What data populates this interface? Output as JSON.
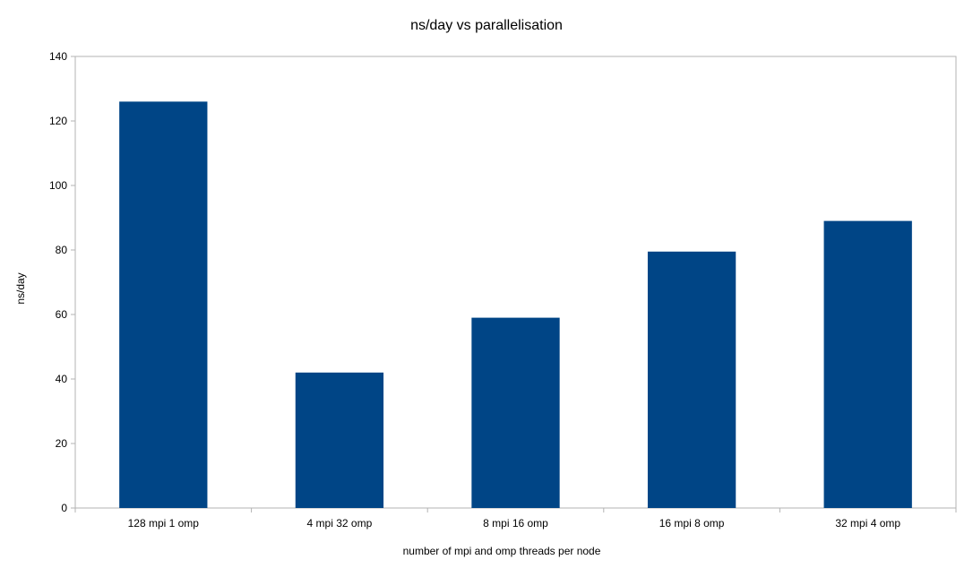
{
  "chart_data": {
    "type": "bar",
    "title": "ns/day vs parallelisation",
    "xlabel": "number of mpi and omp threads per node",
    "ylabel": "ns/day",
    "categories": [
      "128 mpi 1 omp",
      "4 mpi 32 omp",
      "8 mpi 16 omp",
      "16 mpi 8 omp",
      "32 mpi 4 omp"
    ],
    "series": [
      {
        "values": [
          126,
          42,
          59,
          79.5,
          89
        ]
      }
    ],
    "ylim": [
      0,
      140
    ],
    "yticks": [
      0,
      20,
      40,
      60,
      80,
      100,
      120,
      140
    ],
    "grid": false,
    "legend": "none",
    "colors": {
      "bar": "#004586",
      "axis": "#b3b3b3"
    }
  }
}
